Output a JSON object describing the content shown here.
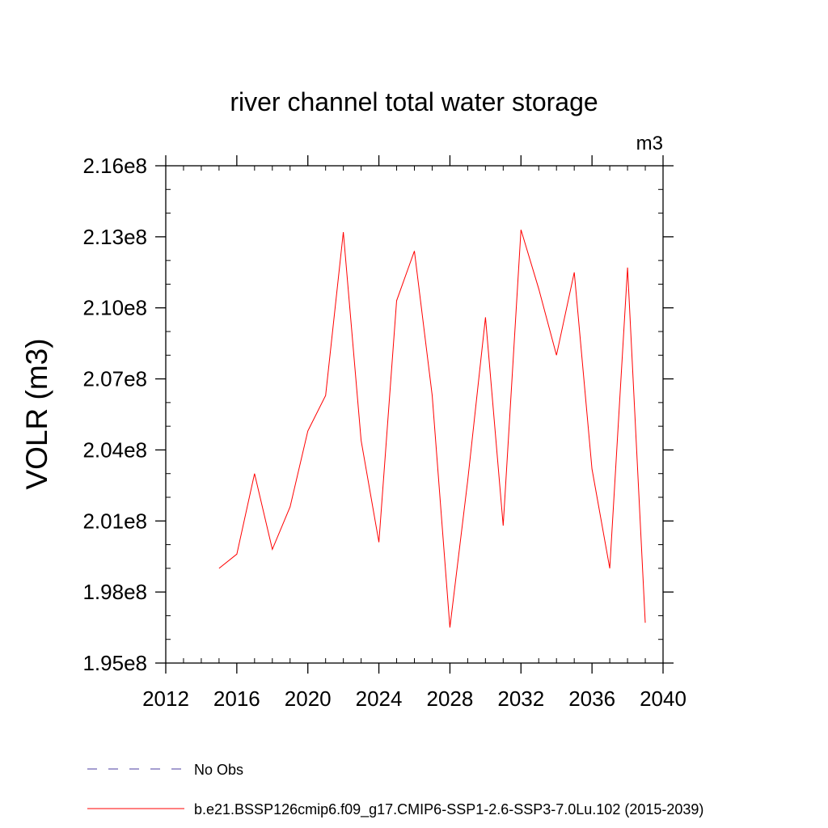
{
  "chart_data": {
    "type": "line",
    "title": "river channel total water storage",
    "units": "m3",
    "ylabel": "VOLR  (m3)",
    "xlabel": "",
    "xlim": [
      2012,
      2040
    ],
    "ylim": [
      195000000,
      216000000
    ],
    "x_ticks": [
      {
        "value": 2012,
        "label": "2012"
      },
      {
        "value": 2016,
        "label": "2016"
      },
      {
        "value": 2020,
        "label": "2020"
      },
      {
        "value": 2024,
        "label": "2024"
      },
      {
        "value": 2028,
        "label": "2028"
      },
      {
        "value": 2032,
        "label": "2032"
      },
      {
        "value": 2036,
        "label": "2036"
      },
      {
        "value": 2040,
        "label": "2040"
      }
    ],
    "y_ticks": [
      {
        "value": 195000000,
        "label": "1.95e8"
      },
      {
        "value": 198000000,
        "label": "1.98e8"
      },
      {
        "value": 201000000,
        "label": "2.01e8"
      },
      {
        "value": 204000000,
        "label": "2.04e8"
      },
      {
        "value": 207000000,
        "label": "2.07e8"
      },
      {
        "value": 210000000,
        "label": "2.10e8"
      },
      {
        "value": 213000000,
        "label": "2.13e8"
      },
      {
        "value": 216000000,
        "label": "2.16e8"
      }
    ],
    "x_minor_step": 1,
    "y_minor_step": 1000000,
    "grid": false,
    "legend_position": "bottom",
    "series": [
      {
        "name": "No Obs",
        "color": "#4b3ca0",
        "dash": "dashed",
        "x": [],
        "y": []
      },
      {
        "name": "b.e21.BSSP126cmip6.f09_g17.CMIP6-SSP1-2.6-SSP3-7.0Lu.102 (2015-2039)",
        "color": "#ff0000",
        "dash": "solid",
        "x": [
          2015,
          2016,
          2017,
          2018,
          2019,
          2020,
          2021,
          2022,
          2023,
          2024,
          2025,
          2026,
          2027,
          2028,
          2029,
          2030,
          2031,
          2032,
          2033,
          2034,
          2035,
          2036,
          2037,
          2038,
          2039
        ],
        "y": [
          199000000,
          199600000,
          203000000,
          199800000,
          201600000,
          204800000,
          206300000,
          213200000,
          204400000,
          200100000,
          210300000,
          212400000,
          206300000,
          196500000,
          202700000,
          209600000,
          200800000,
          213300000,
          210800000,
          208000000,
          211500000,
          203200000,
          199000000,
          211700000,
          196700000
        ]
      }
    ]
  }
}
